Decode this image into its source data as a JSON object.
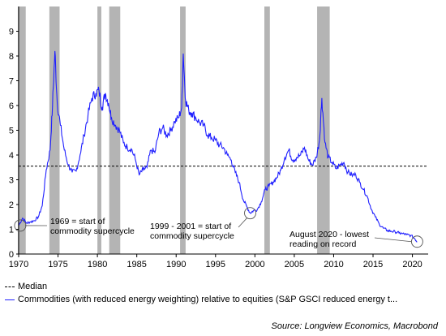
{
  "chart_data": {
    "type": "line",
    "title": "",
    "xlabel": "",
    "ylabel": "",
    "xlim": [
      1970,
      2022
    ],
    "ylim": [
      0,
      10
    ],
    "x_ticks": [
      "1970",
      "1975",
      "1980",
      "1985",
      "1990",
      "1995",
      "2000",
      "2005",
      "2010",
      "2015",
      "2020"
    ],
    "y_ticks": [
      "0",
      "1",
      "2",
      "3",
      "4",
      "5",
      "6",
      "7",
      "8",
      "9"
    ],
    "grid": false,
    "legend_position": "bottom",
    "colors": {
      "series": "#1f1fff",
      "median": "#000000",
      "recession": "#b4b4b4"
    },
    "recession_bands": [
      [
        1969.9,
        1970.9
      ],
      [
        1973.9,
        1975.2
      ],
      [
        1980.0,
        1980.5
      ],
      [
        1981.5,
        1982.9
      ],
      [
        1990.5,
        1991.2
      ],
      [
        2001.2,
        2001.9
      ],
      [
        2007.9,
        2009.5
      ]
    ],
    "median": 3.55,
    "series": [
      {
        "name": "Commodities (with reduced energy weighting) relative to equities (S&P GSCI reduced energy t...",
        "points": [
          [
            1970.0,
            1.15
          ],
          [
            1970.5,
            1.45
          ],
          [
            1971.0,
            1.25
          ],
          [
            1971.5,
            1.3
          ],
          [
            1972.0,
            1.35
          ],
          [
            1972.5,
            1.5
          ],
          [
            1973.0,
            1.95
          ],
          [
            1973.5,
            3.4
          ],
          [
            1974.0,
            4.2
          ],
          [
            1974.3,
            6.0
          ],
          [
            1974.6,
            8.2
          ],
          [
            1974.9,
            6.1
          ],
          [
            1975.3,
            5.2
          ],
          [
            1975.8,
            4.2
          ],
          [
            1976.3,
            3.6
          ],
          [
            1976.8,
            3.3
          ],
          [
            1977.3,
            3.35
          ],
          [
            1977.8,
            4.0
          ],
          [
            1978.3,
            4.8
          ],
          [
            1978.8,
            5.6
          ],
          [
            1979.3,
            6.3
          ],
          [
            1979.8,
            6.5
          ],
          [
            1980.2,
            6.6
          ],
          [
            1980.6,
            5.9
          ],
          [
            1981.0,
            6.5
          ],
          [
            1981.4,
            6.1
          ],
          [
            1981.8,
            5.5
          ],
          [
            1982.3,
            5.2
          ],
          [
            1982.8,
            5.0
          ],
          [
            1983.3,
            4.5
          ],
          [
            1983.8,
            4.3
          ],
          [
            1984.3,
            4.25
          ],
          [
            1984.8,
            3.85
          ],
          [
            1985.3,
            3.2
          ],
          [
            1985.8,
            3.4
          ],
          [
            1986.3,
            3.5
          ],
          [
            1986.8,
            4.2
          ],
          [
            1987.3,
            4.1
          ],
          [
            1987.8,
            4.9
          ],
          [
            1988.3,
            5.1
          ],
          [
            1988.8,
            4.8
          ],
          [
            1989.3,
            5.0
          ],
          [
            1989.8,
            5.35
          ],
          [
            1990.3,
            5.5
          ],
          [
            1990.7,
            5.9
          ],
          [
            1990.9,
            8.1
          ],
          [
            1991.2,
            6.2
          ],
          [
            1991.6,
            5.8
          ],
          [
            1992.0,
            5.7
          ],
          [
            1992.5,
            5.5
          ],
          [
            1993.0,
            5.3
          ],
          [
            1993.5,
            5.2
          ],
          [
            1994.0,
            4.8
          ],
          [
            1994.5,
            4.7
          ],
          [
            1995.0,
            4.6
          ],
          [
            1995.5,
            4.4
          ],
          [
            1996.0,
            4.3
          ],
          [
            1996.5,
            4.0
          ],
          [
            1997.0,
            3.8
          ],
          [
            1997.5,
            3.3
          ],
          [
            1998.0,
            2.9
          ],
          [
            1998.5,
            2.2
          ],
          [
            1999.0,
            1.9
          ],
          [
            1999.4,
            1.65
          ],
          [
            1999.8,
            1.75
          ],
          [
            2000.3,
            1.8
          ],
          [
            2000.8,
            2.1
          ],
          [
            2001.3,
            2.6
          ],
          [
            2001.8,
            2.75
          ],
          [
            2002.3,
            2.9
          ],
          [
            2002.8,
            3.1
          ],
          [
            2003.3,
            3.4
          ],
          [
            2003.8,
            3.9
          ],
          [
            2004.3,
            4.2
          ],
          [
            2004.8,
            3.8
          ],
          [
            2005.3,
            3.9
          ],
          [
            2005.8,
            4.0
          ],
          [
            2006.3,
            4.3
          ],
          [
            2006.8,
            3.8
          ],
          [
            2007.3,
            3.6
          ],
          [
            2007.8,
            3.9
          ],
          [
            2008.2,
            4.6
          ],
          [
            2008.5,
            6.3
          ],
          [
            2008.9,
            4.5
          ],
          [
            2009.3,
            3.9
          ],
          [
            2009.8,
            3.7
          ],
          [
            2010.3,
            3.45
          ],
          [
            2010.8,
            3.6
          ],
          [
            2011.3,
            3.7
          ],
          [
            2011.8,
            3.3
          ],
          [
            2012.3,
            3.2
          ],
          [
            2012.8,
            3.2
          ],
          [
            2013.3,
            2.9
          ],
          [
            2013.8,
            2.6
          ],
          [
            2014.3,
            2.3
          ],
          [
            2014.8,
            1.8
          ],
          [
            2015.3,
            1.5
          ],
          [
            2015.8,
            1.2
          ],
          [
            2016.3,
            1.05
          ],
          [
            2016.8,
            0.95
          ],
          [
            2017.3,
            0.92
          ],
          [
            2017.8,
            0.9
          ],
          [
            2018.3,
            0.85
          ],
          [
            2018.8,
            0.82
          ],
          [
            2019.3,
            0.78
          ],
          [
            2019.8,
            0.75
          ],
          [
            2020.3,
            0.62
          ],
          [
            2020.6,
            0.5
          ]
        ]
      }
    ],
    "annotations": [
      {
        "lines": [
          "1969 = start of",
          "commodity supercycle"
        ],
        "x": 1970.2,
        "y": 1.15
      },
      {
        "lines": [
          "1999 - 2001 = start of",
          "commodity supercycle"
        ],
        "x": 1999.4,
        "y": 1.65
      },
      {
        "lines": [
          "August 2020 - lowest",
          "reading on record"
        ],
        "x": 2020.6,
        "y": 0.5
      }
    ]
  },
  "legend": {
    "median_label": "Median",
    "series_label": "Commodities (with reduced energy weighting) relative to equities (S&P GSCI reduced energy t..."
  },
  "source": "Source: Longview Economics, Macrobond"
}
